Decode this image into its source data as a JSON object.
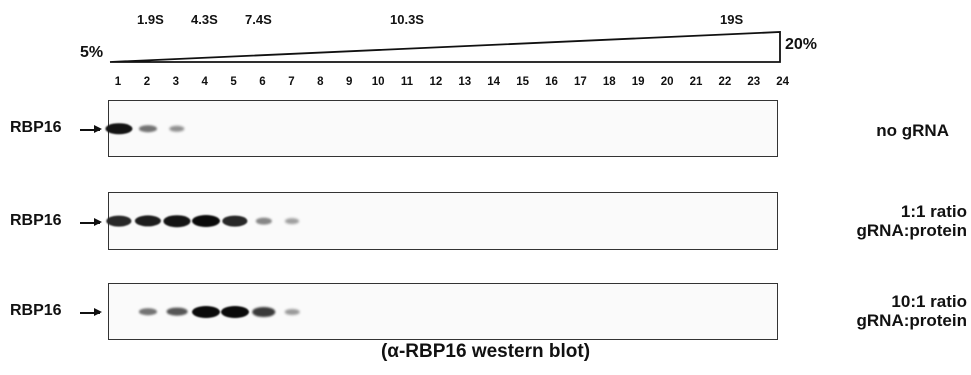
{
  "gradient": {
    "start_label": "5%",
    "end_label": "20%",
    "sedimentation_markers": [
      "1.9S",
      "4.3S",
      "7.4S",
      "10.3S",
      "19S"
    ],
    "fraction_numbers": [
      "1",
      "2",
      "3",
      "4",
      "5",
      "6",
      "7",
      "8",
      "9",
      "10",
      "11",
      "12",
      "13",
      "14",
      "15",
      "16",
      "17",
      "18",
      "19",
      "20",
      "21",
      "22",
      "23",
      "24"
    ]
  },
  "panels": [
    {
      "protein_label": "RBP16",
      "condition_lines": [
        "no gRNA"
      ],
      "band_intensity": [
        0.95,
        0.45,
        0.3,
        0,
        0,
        0,
        0,
        0,
        0,
        0,
        0,
        0,
        0,
        0,
        0,
        0,
        0,
        0,
        0,
        0,
        0,
        0,
        0,
        0
      ]
    },
    {
      "protein_label": "RBP16",
      "condition_lines": [
        "1:1 ratio",
        "gRNA:protein"
      ],
      "band_intensity": [
        0.85,
        0.9,
        0.95,
        1.0,
        0.85,
        0.35,
        0.22,
        0,
        0,
        0,
        0,
        0,
        0,
        0,
        0,
        0,
        0,
        0,
        0,
        0,
        0,
        0,
        0,
        0
      ]
    },
    {
      "protein_label": "RBP16",
      "condition_lines": [
        "10:1 ratio",
        "gRNA:protein"
      ],
      "band_intensity": [
        0,
        0.45,
        0.6,
        1.0,
        1.0,
        0.75,
        0.25,
        0,
        0,
        0,
        0,
        0,
        0,
        0,
        0,
        0,
        0,
        0,
        0,
        0,
        0,
        0,
        0,
        0
      ]
    }
  ],
  "caption": "(α-RBP16 western blot)"
}
